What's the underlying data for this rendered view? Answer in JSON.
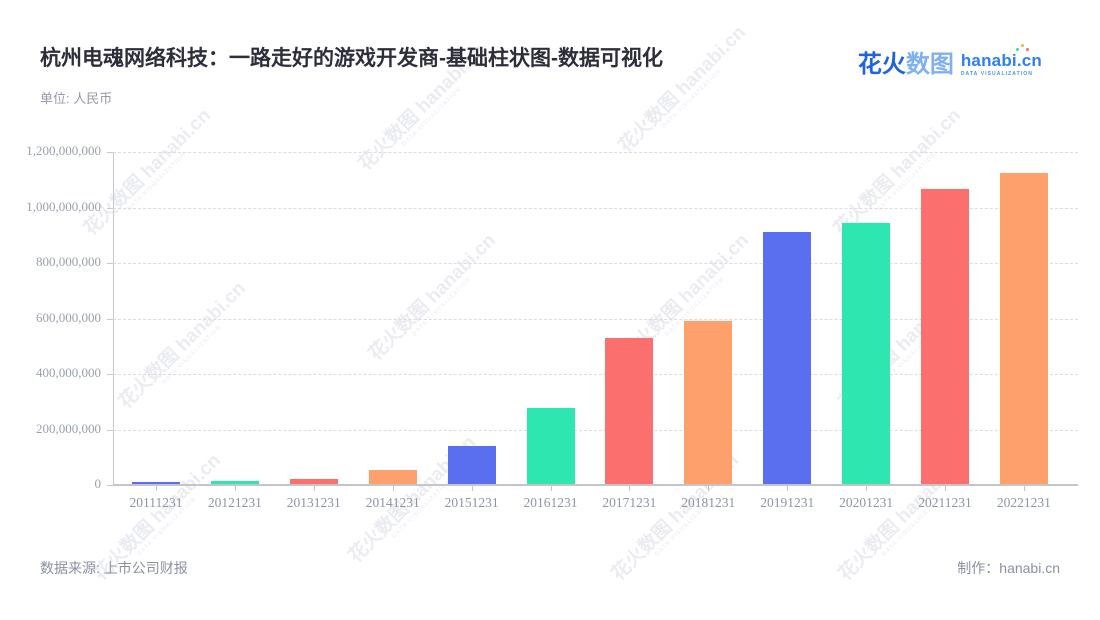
{
  "header": {
    "title": "杭州电魂网络科技：一路走好的游戏开发商-基础柱状图-数据可视化",
    "unit_label": "单位: 人民币"
  },
  "logo": {
    "brand_cn_primary": "花火",
    "brand_cn_secondary": "数图",
    "brand_en": "hanabi.cn",
    "brand_tagline": "DATA VISUALIZATION"
  },
  "watermark": {
    "text": "花火数图 hanabi.cn",
    "tagline": "DATA VISUALIZATION"
  },
  "footer": {
    "source": "数据来源: 上市公司财报",
    "credit": "制作：hanabi.cn"
  },
  "chart_data": {
    "type": "bar",
    "title": "杭州电魂网络科技：一路走好的游戏开发商-基础柱状图-数据可视化",
    "unit": "人民币",
    "categories": [
      "20111231",
      "20121231",
      "20131231",
      "20141231",
      "20151231",
      "20161231",
      "20171231",
      "20181231",
      "20191231",
      "20201231",
      "20211231",
      "20221231"
    ],
    "values": [
      10000000,
      14000000,
      20000000,
      55000000,
      139000000,
      278000000,
      529000000,
      591000000,
      910000000,
      943000000,
      1065000000,
      1125000000
    ],
    "xlabel": "",
    "ylabel": "",
    "ylim": [
      0,
      1200000000
    ],
    "y_tick_labels": [
      "1,200,000,000",
      "1,000,000,000",
      "800,000,000",
      "600,000,000",
      "400,000,000",
      "200,000,000",
      "0"
    ],
    "grid": "horizontal-dashed",
    "legend": "none",
    "bar_palette": [
      "#5a6ff0",
      "#2ee6b0",
      "#fb6f6f",
      "#fda06b"
    ]
  }
}
